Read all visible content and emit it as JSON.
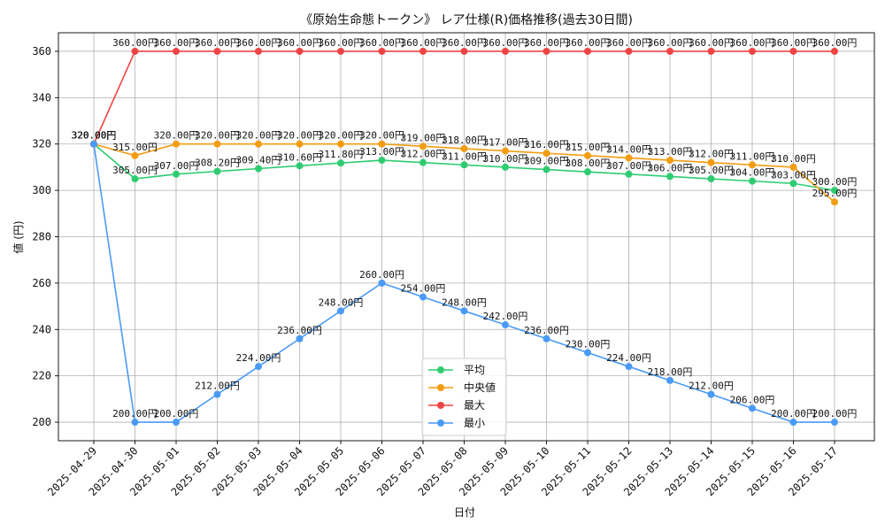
{
  "chart_data": {
    "type": "line",
    "title": "《原始生命態トークン》 レア仕様(R)価格推移(過去30日間)",
    "xlabel": "日付",
    "ylabel": "値 (円)",
    "ylim": [
      192,
      368
    ],
    "yticks": [
      200,
      220,
      240,
      260,
      280,
      300,
      320,
      340,
      360
    ],
    "grid": true,
    "legend_position": "lower-center",
    "label_suffix": "円",
    "categories": [
      "2025-04-29",
      "2025-04-30",
      "2025-05-01",
      "2025-05-02",
      "2025-05-03",
      "2025-05-04",
      "2025-05-05",
      "2025-05-06",
      "2025-05-07",
      "2025-05-08",
      "2025-05-09",
      "2025-05-10",
      "2025-05-11",
      "2025-05-12",
      "2025-05-13",
      "2025-05-14",
      "2025-05-15",
      "2025-05-16",
      "2025-05-17"
    ],
    "series": [
      {
        "name": "平均",
        "color": "#2ecc71",
        "values": [
          320,
          305,
          307,
          308.2,
          309.4,
          310.6,
          311.8,
          313,
          312,
          311,
          310,
          309,
          308,
          307,
          306,
          305,
          304,
          303,
          300
        ]
      },
      {
        "name": "中央値",
        "color": "#f39c12",
        "values": [
          320,
          315,
          320,
          320,
          320,
          320,
          320,
          320,
          319,
          318,
          317,
          316,
          315,
          314,
          313,
          312,
          311,
          310,
          295
        ]
      },
      {
        "name": "最大",
        "color": "#ef4444",
        "values": [
          320,
          360,
          360,
          360,
          360,
          360,
          360,
          360,
          360,
          360,
          360,
          360,
          360,
          360,
          360,
          360,
          360,
          360,
          360
        ]
      },
      {
        "name": "最小",
        "color": "#4a9af5",
        "values": [
          320,
          200,
          200,
          212,
          224,
          236,
          248,
          260,
          254,
          248,
          242,
          236,
          230,
          224,
          218,
          212,
          206,
          200,
          200
        ]
      }
    ]
  }
}
